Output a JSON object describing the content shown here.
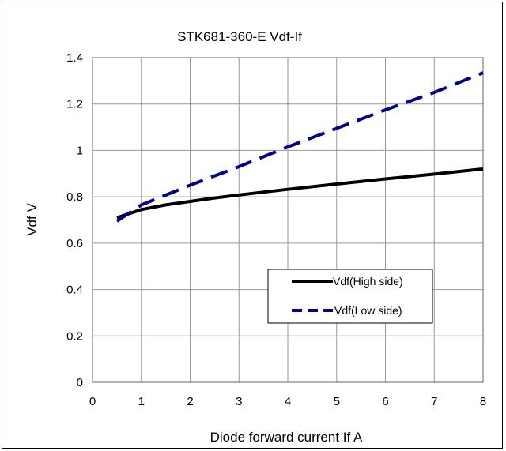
{
  "chart_data": {
    "type": "line",
    "title": "STK681-360-E Vdf-If",
    "xlabel": "Diode forward current  If   A",
    "ylabel": "Vdf   V",
    "xlim": [
      0,
      8
    ],
    "ylim": [
      0,
      1.4
    ],
    "x_ticks": [
      "0",
      "1",
      "2",
      "3",
      "4",
      "5",
      "6",
      "7",
      "8"
    ],
    "y_ticks": [
      "0",
      "0.2",
      "0.4",
      "0.6",
      "0.8",
      "1",
      "1.2",
      "1.4"
    ],
    "grid": true,
    "legend_position": "lower-right",
    "series": [
      {
        "name": "Vdf(High side)",
        "color": "#000000",
        "style": "solid",
        "x": [
          0.5,
          1,
          1.5,
          2,
          2.5,
          3,
          4,
          5,
          6,
          7,
          8
        ],
        "y": [
          0.71,
          0.745,
          0.765,
          0.78,
          0.795,
          0.808,
          0.832,
          0.855,
          0.877,
          0.898,
          0.92
        ]
      },
      {
        "name": "Vdf(Low side)",
        "color": "#00008B",
        "style": "dashed",
        "x": [
          0.5,
          1,
          2,
          3,
          4,
          5,
          6,
          7,
          8
        ],
        "y": [
          0.695,
          0.765,
          0.85,
          0.93,
          1.015,
          1.095,
          1.175,
          1.25,
          1.335
        ]
      }
    ]
  }
}
